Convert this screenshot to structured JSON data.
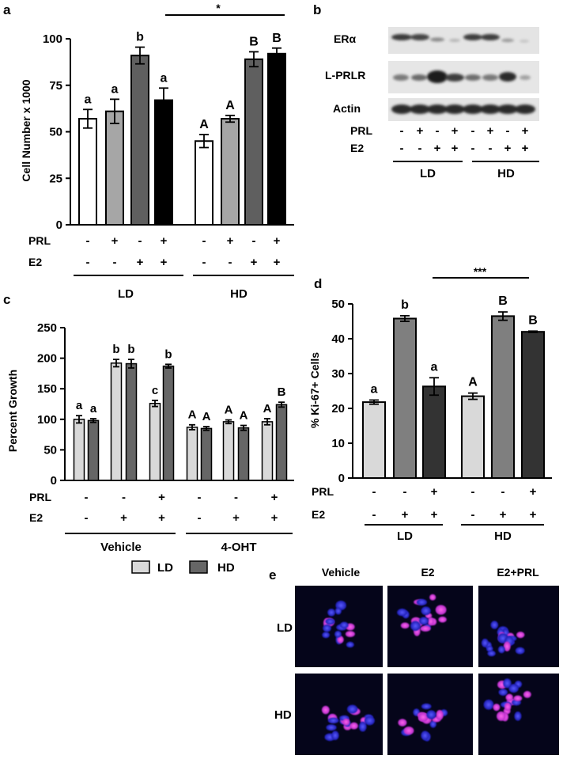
{
  "panels": {
    "a": {
      "letter": "a",
      "chart_data": {
        "type": "bar",
        "ylabel": "Cell Number x 1000",
        "ylim": [
          0,
          100
        ],
        "yticks": [
          0,
          25,
          50,
          75,
          100
        ],
        "grid": false,
        "groups": [
          "LD",
          "HD"
        ],
        "bars": [
          {
            "group": "LD",
            "prl": "-",
            "e2": "-",
            "value": 57,
            "error": 5,
            "letter": "a",
            "color": "#ffffff"
          },
          {
            "group": "LD",
            "prl": "+",
            "e2": "-",
            "value": 61,
            "error": 6.5,
            "letter": "a",
            "color": "#a6a6a6"
          },
          {
            "group": "LD",
            "prl": "-",
            "e2": "+",
            "value": 91,
            "error": 4.5,
            "letter": "b",
            "color": "#5f5f5f"
          },
          {
            "group": "LD",
            "prl": "+",
            "e2": "+",
            "value": 67,
            "error": 6.5,
            "letter": "a",
            "color": "#000000"
          },
          {
            "group": "HD",
            "prl": "-",
            "e2": "-",
            "value": 45,
            "error": 3.5,
            "letter": "A",
            "color": "#ffffff"
          },
          {
            "group": "HD",
            "prl": "+",
            "e2": "-",
            "value": 57,
            "error": 1.8,
            "letter": "A",
            "color": "#a6a6a6"
          },
          {
            "group": "HD",
            "prl": "-",
            "e2": "+",
            "value": 89,
            "error": 4,
            "letter": "B",
            "color": "#5f5f5f"
          },
          {
            "group": "HD",
            "prl": "+",
            "e2": "+",
            "value": 92,
            "error": 3,
            "letter": "B",
            "color": "#000000"
          }
        ],
        "row_labels": [
          "PRL",
          "E2"
        ],
        "significance": "*"
      }
    },
    "b": {
      "letter": "b",
      "blot_labels": [
        "ERα",
        "L-PRLR",
        "Actin"
      ],
      "lanes": [
        {
          "prl": "-",
          "e2": "-"
        },
        {
          "prl": "+",
          "e2": "-"
        },
        {
          "prl": "-",
          "e2": "+"
        },
        {
          "prl": "+",
          "e2": "+"
        },
        {
          "prl": "-",
          "e2": "-"
        },
        {
          "prl": "+",
          "e2": "-"
        },
        {
          "prl": "-",
          "e2": "+"
        },
        {
          "prl": "+",
          "e2": "+"
        }
      ],
      "row_labels": [
        "PRL",
        "E2"
      ],
      "groups": [
        "LD",
        "HD"
      ]
    },
    "c": {
      "letter": "c",
      "chart_data": {
        "type": "bar",
        "ylabel": "Percent Growth",
        "ylim": [
          0,
          250
        ],
        "yticks": [
          0,
          50,
          100,
          150,
          200,
          250
        ],
        "grid": false,
        "legend": {
          "placement": "bottom",
          "entries": [
            {
              "name": "LD",
              "color": "#d9d9d9"
            },
            {
              "name": "HD",
              "color": "#666666"
            }
          ]
        },
        "series": [
          {
            "name": "LD",
            "color": "#d9d9d9"
          },
          {
            "name": "HD",
            "color": "#666666"
          }
        ],
        "conditions": [
          {
            "treatment": "Vehicle",
            "prl": "-",
            "e2": "-",
            "values": [
              100,
              98
            ],
            "errors": [
              6,
              3
            ],
            "letters": [
              "a",
              "a"
            ]
          },
          {
            "treatment": "Vehicle",
            "prl": "-",
            "e2": "+",
            "values": [
              192,
              191
            ],
            "errors": [
              6,
              7
            ],
            "letters": [
              "b",
              "b"
            ]
          },
          {
            "treatment": "Vehicle",
            "prl": "+",
            "e2": "+",
            "values": [
              126,
              187
            ],
            "errors": [
              5,
              3
            ],
            "letters": [
              "c",
              "b"
            ]
          },
          {
            "treatment": "4-OHT",
            "prl": "-",
            "e2": "-",
            "values": [
              87,
              85
            ],
            "errors": [
              4,
              3
            ],
            "letters": [
              "A",
              "A"
            ]
          },
          {
            "treatment": "4-OHT",
            "prl": "-",
            "e2": "+",
            "values": [
              96,
              86
            ],
            "errors": [
              3,
              4
            ],
            "letters": [
              "A",
              "A"
            ]
          },
          {
            "treatment": "4-OHT",
            "prl": "+",
            "e2": "+",
            "values": [
              96,
              124
            ],
            "errors": [
              5,
              4
            ],
            "letters": [
              "A",
              "B"
            ]
          }
        ],
        "row_labels": [
          "PRL",
          "E2"
        ],
        "groups": [
          "Vehicle",
          "4-OHT"
        ]
      }
    },
    "d": {
      "letter": "d",
      "chart_data": {
        "type": "bar",
        "ylabel": "% Ki-67+ Cells",
        "ylim": [
          0,
          50
        ],
        "yticks": [
          0,
          10,
          20,
          30,
          40,
          50
        ],
        "grid": false,
        "bars": [
          {
            "group": "LD",
            "prl": "-",
            "e2": "-",
            "value": 21.8,
            "error": 0.6,
            "letter": "a",
            "color": "#d9d9d9"
          },
          {
            "group": "LD",
            "prl": "-",
            "e2": "+",
            "value": 45.8,
            "error": 0.8,
            "letter": "b",
            "color": "#7f7f7f"
          },
          {
            "group": "LD",
            "prl": "+",
            "e2": "+",
            "value": 26.3,
            "error": 2.5,
            "letter": "a",
            "color": "#333333"
          },
          {
            "group": "HD",
            "prl": "-",
            "e2": "-",
            "value": 23.5,
            "error": 0.9,
            "letter": "A",
            "color": "#d9d9d9"
          },
          {
            "group": "HD",
            "prl": "-",
            "e2": "+",
            "value": 46.5,
            "error": 1.2,
            "letter": "B",
            "color": "#7f7f7f"
          },
          {
            "group": "HD",
            "prl": "+",
            "e2": "+",
            "value": 42,
            "error": 0.2,
            "letter": "B",
            "color": "#333333"
          }
        ],
        "row_labels": [
          "PRL",
          "E2"
        ],
        "groups": [
          "LD",
          "HD"
        ],
        "significance": "***"
      }
    },
    "e": {
      "letter": "e",
      "columns": [
        "Vehicle",
        "E2",
        "E2+PRL"
      ],
      "rows": [
        "LD",
        "HD"
      ]
    }
  }
}
